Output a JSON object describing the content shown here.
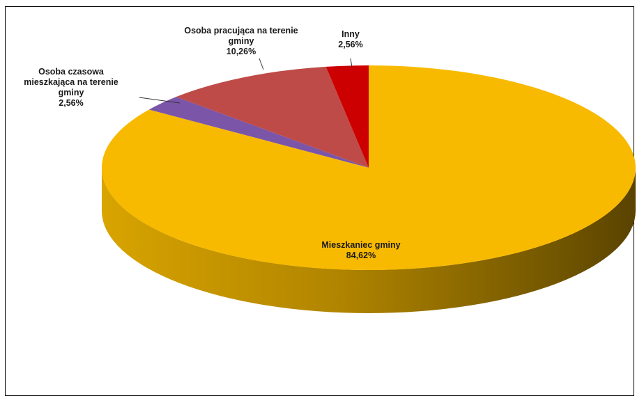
{
  "chart_data": {
    "type": "pie",
    "style": "3d",
    "slices": [
      {
        "label_lines": [
          "Mieszkaniec gminy"
        ],
        "percent_label": "84,62%",
        "value": 84.62,
        "color": "#F8BA00"
      },
      {
        "label_lines": [
          "Osoba czasowa",
          "mieszkająca na terenie",
          "gminy"
        ],
        "percent_label": "2,56%",
        "value": 2.56,
        "color": "#7B55A8"
      },
      {
        "label_lines": [
          "Osoba pracująca na terenie",
          "gminy"
        ],
        "percent_label": "10,26%",
        "value": 10.26,
        "color": "#BE4B48"
      },
      {
        "label_lines": [
          "Inny"
        ],
        "percent_label": "2,56%",
        "value": 2.56,
        "color": "#CC0000"
      }
    ]
  }
}
